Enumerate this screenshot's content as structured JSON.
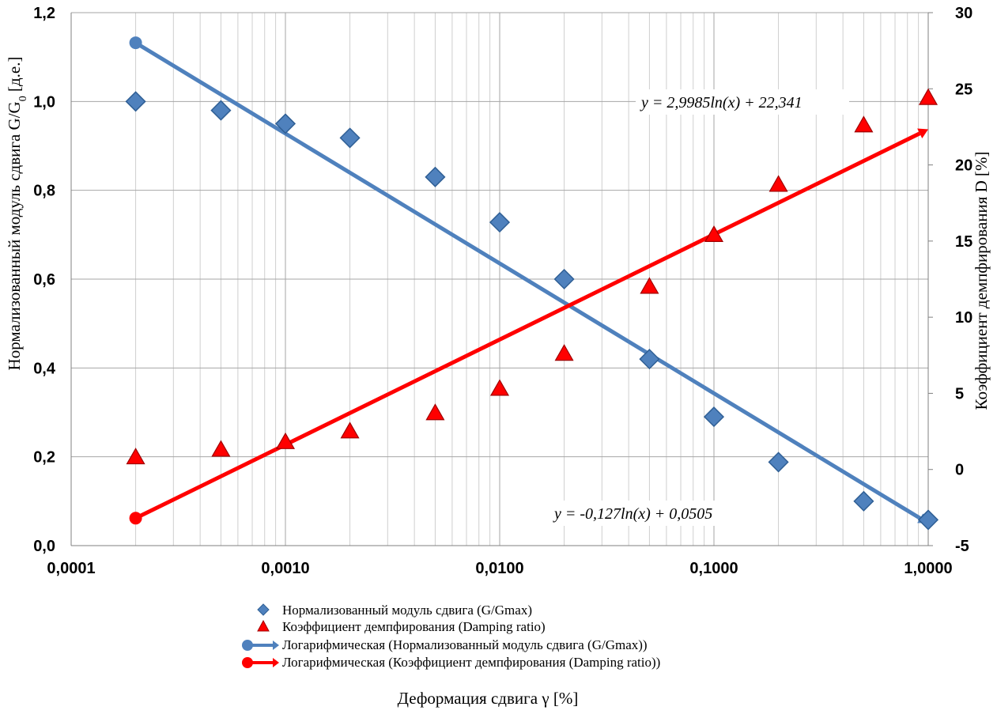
{
  "chart_data": {
    "type": "scatter",
    "x_scale": "log",
    "xlabel": "Деформация сдвига γ [%]",
    "ylabel_left_main": "Нормализованный модуль сдвига G/G",
    "ylabel_left_sub": "0",
    "ylabel_left_unit": " [д.е.]",
    "ylabel_right": "Коэффициент демпфирования D [%]",
    "xlim": [
      0.0001,
      1
    ],
    "ylim_left": [
      0,
      1.2
    ],
    "ylim_right": [
      -5,
      30
    ],
    "x_ticks": [
      "0,0001",
      "0,0010",
      "0,0100",
      "0,1000",
      "1,0000"
    ],
    "y_left_ticks": [
      "0,0",
      "0,2",
      "0,4",
      "0,6",
      "0,8",
      "1,0",
      "1,2"
    ],
    "y_right_ticks": [
      "-5",
      "0",
      "5",
      "10",
      "15",
      "20",
      "25",
      "30"
    ],
    "grid": true,
    "legend_position": "bottom",
    "series": [
      {
        "name": "Нормализованный модуль сдвига (G/Gmax)",
        "axis": "left",
        "marker": "diamond",
        "color": "#4F81BD",
        "x": [
          0.0002,
          0.0005,
          0.001,
          0.002,
          0.005,
          0.01,
          0.02,
          0.05,
          0.1,
          0.2,
          0.5,
          1.0
        ],
        "y": [
          1.0,
          0.98,
          0.95,
          0.918,
          0.83,
          0.728,
          0.6,
          0.42,
          0.29,
          0.188,
          0.1,
          0.058
        ]
      },
      {
        "name": "Коэффициент демпфирования (Damping ratio)",
        "axis": "right",
        "marker": "triangle",
        "color": "#FF0000",
        "x": [
          0.0002,
          0.0005,
          0.001,
          0.002,
          0.005,
          0.01,
          0.02,
          0.05,
          0.1,
          0.2,
          0.5,
          1.0
        ],
        "y": [
          0.8,
          1.3,
          1.8,
          2.5,
          3.7,
          5.3,
          7.6,
          12.0,
          15.4,
          18.7,
          22.6,
          24.4
        ]
      },
      {
        "name": "Логарифмическая (Нормализованный модуль сдвига (G/Gmax))",
        "axis": "left",
        "type": "trendline",
        "color": "#4F81BD",
        "x_range": [
          0.0002,
          1.0
        ],
        "equation": "y = -0,127ln(x) + 0,0505",
        "a": -0.127,
        "b": 0.0505
      },
      {
        "name": "Логарифмическая (Коэффициент демпфирования (Damping ratio))",
        "axis": "right",
        "type": "trendline",
        "color": "#FF0000",
        "x_range": [
          0.0002,
          1.0
        ],
        "equation": "y = 2,9985ln(x) + 22,341",
        "a": 2.9985,
        "b": 22.341
      }
    ]
  }
}
